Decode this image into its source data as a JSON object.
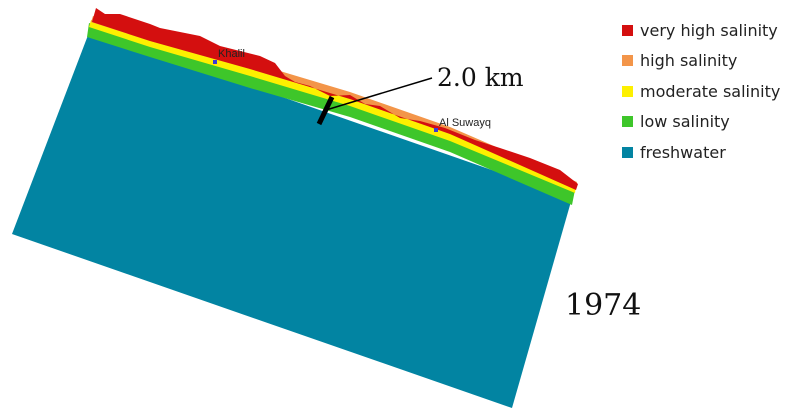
{
  "map": {
    "places": [
      {
        "name": "Khalil"
      },
      {
        "name": "Al Suwayq"
      }
    ],
    "scale_bar": {
      "label": "2.0 km"
    },
    "year": "1974"
  },
  "legend": {
    "items": [
      {
        "label": "very high salinity",
        "color": "#d40f0f"
      },
      {
        "label": "high salinity",
        "color": "#f39549"
      },
      {
        "label": "moderate salinity",
        "color": "#fdf000"
      },
      {
        "label": "low salinity",
        "color": "#3ec62a"
      },
      {
        "label": "freshwater",
        "color": "#0284a2"
      }
    ]
  }
}
